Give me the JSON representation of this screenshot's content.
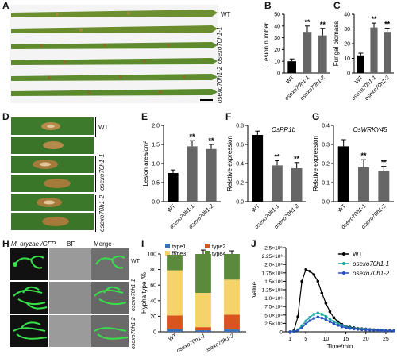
{
  "panels": {
    "A": {
      "label": "A",
      "wt": "WT",
      "g1": "osexo70h1-1",
      "g2": "osexo70h1-2"
    },
    "B": {
      "label": "B"
    },
    "C": {
      "label": "C"
    },
    "D": {
      "label": "D",
      "wt": "WT",
      "g1": "osexo70h1-1",
      "g2": "osexo70h1-2"
    },
    "E": {
      "label": "E"
    },
    "F": {
      "label": "F"
    },
    "G": {
      "label": "G"
    },
    "H": {
      "label": "H",
      "col1": "M. oryzae /GFP",
      "col2": "BF",
      "col3": "Merge",
      "wt": "WT",
      "g1": "osexo70h1-1",
      "g2": "osexo70h1-2"
    },
    "I": {
      "label": "I"
    },
    "J": {
      "label": "J"
    }
  },
  "sig": "**",
  "chart_data": [
    {
      "id": "B",
      "type": "bar",
      "categories": [
        "WT",
        "osexo70h1-1",
        "osexo70h1-2"
      ],
      "values": [
        10,
        35,
        32
      ],
      "errors": [
        2,
        5,
        6
      ],
      "ylabel": "Lesion number",
      "ylim": [
        0,
        50
      ],
      "yticks": [
        "0",
        "10",
        "20",
        "30",
        "40",
        "50"
      ],
      "significance": [
        "",
        "**",
        "**"
      ]
    },
    {
      "id": "C",
      "type": "bar",
      "categories": [
        "WT",
        "osexo70h1-1",
        "osexo70h1-2"
      ],
      "values": [
        12,
        31,
        28
      ],
      "errors": [
        1.5,
        3,
        2.5
      ],
      "ylabel": "Fungal biomass",
      "ylim": [
        0,
        40
      ],
      "yticks": [
        "0",
        "10",
        "20",
        "30",
        "40"
      ],
      "significance": [
        "",
        "**",
        "**"
      ]
    },
    {
      "id": "E",
      "type": "bar",
      "categories": [
        "WT",
        "osexo70h1-1",
        "osexo70h1-2"
      ],
      "values": [
        0.75,
        1.45,
        1.38
      ],
      "errors": [
        0.08,
        0.15,
        0.12
      ],
      "ylabel": "Lesion area/cm²",
      "ylim": [
        0,
        2.0
      ],
      "yticks": [
        "0.0",
        "0.5",
        "1.0",
        "1.5",
        "2.0"
      ],
      "significance": [
        "",
        "**",
        "**"
      ]
    },
    {
      "id": "F",
      "type": "bar",
      "title": "OsPR1b",
      "categories": [
        "WT",
        "osexo70h1-1",
        "osexo70h1-2"
      ],
      "values": [
        0.7,
        0.38,
        0.35
      ],
      "errors": [
        0.04,
        0.05,
        0.06
      ],
      "ylabel": "Relative expression",
      "ylim": [
        0,
        0.8
      ],
      "yticks": [
        "0.0",
        "0.2",
        "0.4",
        "0.6",
        "0.8"
      ],
      "significance": [
        "",
        "**",
        "**"
      ]
    },
    {
      "id": "G",
      "type": "bar",
      "title": "OsWRKY45",
      "categories": [
        "WT",
        "osexo70h1-1",
        "osexo70h1-2"
      ],
      "values": [
        0.29,
        0.18,
        0.16
      ],
      "errors": [
        0.035,
        0.04,
        0.025
      ],
      "ylabel": "Relative expression",
      "ylim": [
        0,
        0.4
      ],
      "yticks": [
        "0.0",
        "0.1",
        "0.2",
        "0.3",
        "0.4"
      ],
      "significance": [
        "",
        "**",
        "**"
      ]
    },
    {
      "id": "I",
      "type": "bar",
      "stacked": true,
      "categories": [
        "WT",
        "osexo70h1-1",
        "osexo70h1-2"
      ],
      "series": [
        {
          "name": "type1",
          "color": "#3b6fb6",
          "values": [
            4,
            2,
            3
          ]
        },
        {
          "name": "type2",
          "color": "#d9541e",
          "values": [
            17,
            4,
            19
          ]
        },
        {
          "name": "type3",
          "color": "#f5d36a",
          "values": [
            58,
            44,
            45
          ]
        },
        {
          "name": "type4",
          "color": "#5c8a3c",
          "values": [
            20,
            50,
            33
          ]
        }
      ],
      "errors": [
        4,
        5,
        4
      ],
      "ylabel": "Hypha type /%",
      "ylim": [
        0,
        100
      ],
      "yticks": [
        "0",
        "20",
        "40",
        "60",
        "80",
        "100"
      ]
    },
    {
      "id": "J",
      "type": "line",
      "xlabel": "Time/min",
      "ylabel": "Value",
      "xlim": [
        0,
        27
      ],
      "ylim": [
        0,
        2500000
      ],
      "xticks": [
        "1",
        "5",
        "10",
        "15",
        "20",
        "25"
      ],
      "yticks": [
        "0",
        "2.5×10⁵",
        "5.0×10⁵",
        "7.5×10⁵",
        "1.0×10⁶",
        "1.25×10⁶",
        "1.5×10⁶",
        "1.75×10⁶",
        "2.0×10⁶",
        "2.25×10⁶",
        "2.5×10⁶"
      ],
      "x": [
        1,
        2,
        3,
        4,
        5,
        6,
        7,
        8,
        9,
        10,
        11,
        12,
        13,
        14,
        15,
        16,
        17,
        18,
        19,
        20,
        21,
        22,
        23,
        24,
        25,
        26,
        27
      ],
      "series": [
        {
          "name": "WT",
          "color": "#000000",
          "values": [
            0,
            30000,
            450000,
            1500000,
            1850000,
            1800000,
            1700000,
            1500000,
            1150000,
            850000,
            600000,
            420000,
            300000,
            220000,
            170000,
            140000,
            120000,
            100000,
            90000,
            80000,
            70000,
            60000,
            55000,
            50000,
            45000,
            40000,
            35000
          ]
        },
        {
          "name": "osexo70h1-1",
          "color": "#1aa3a3",
          "values": [
            0,
            10000,
            60000,
            180000,
            320000,
            430000,
            520000,
            560000,
            520000,
            460000,
            380000,
            300000,
            240000,
            190000,
            150000,
            120000,
            100000,
            90000,
            80000,
            70000,
            60000,
            55000,
            50000,
            45000,
            40000,
            35000,
            30000
          ]
        },
        {
          "name": "osexo70h1-2",
          "color": "#2a52be",
          "values": [
            0,
            8000,
            40000,
            120000,
            230000,
            330000,
            400000,
            440000,
            410000,
            360000,
            300000,
            240000,
            190000,
            150000,
            120000,
            100000,
            85000,
            75000,
            65000,
            58000,
            52000,
            47000,
            42000,
            38000,
            34000,
            30000,
            27000
          ]
        }
      ]
    }
  ]
}
